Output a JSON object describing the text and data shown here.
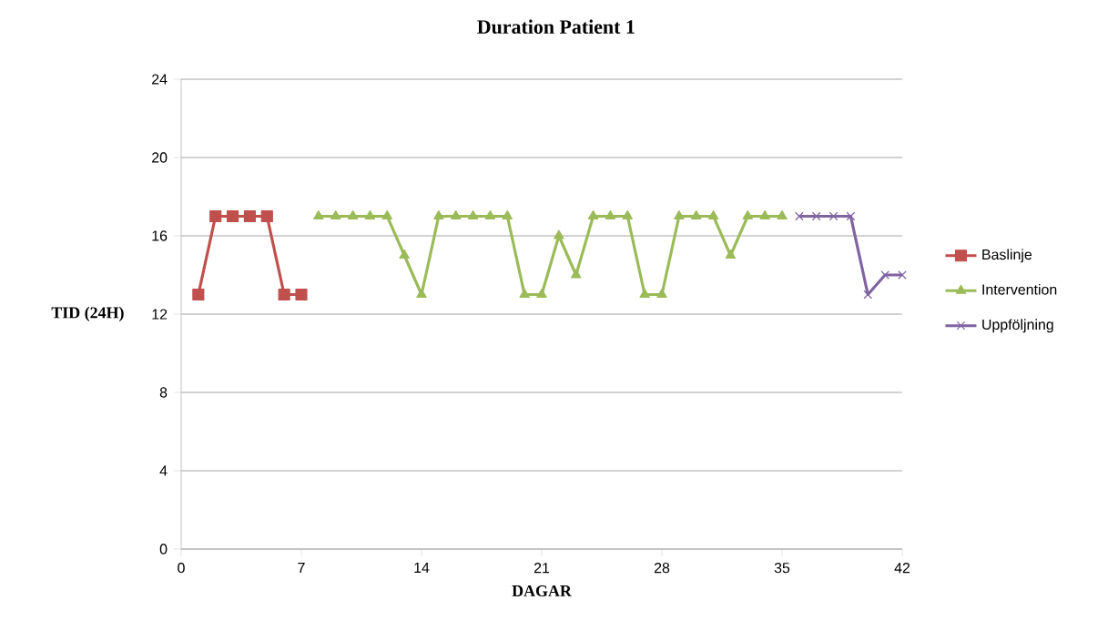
{
  "chart_data": {
    "type": "line",
    "title": "Duration Patient 1",
    "xlabel": "DAGAR",
    "ylabel": "TID (24H)",
    "xlim": [
      0,
      42
    ],
    "xticks": [
      0,
      7,
      14,
      21,
      28,
      35,
      42
    ],
    "ylim": [
      0,
      24
    ],
    "yticks": [
      0,
      4,
      8,
      12,
      16,
      20,
      24
    ],
    "grid": "y",
    "legend": "right",
    "series": [
      {
        "name": "Baslinje",
        "color": "#c0504d",
        "marker": "square",
        "x": [
          1,
          2,
          3,
          4,
          5,
          6,
          7
        ],
        "values": [
          13,
          17,
          17,
          17,
          17,
          13,
          13
        ]
      },
      {
        "name": "Intervention",
        "color": "#9bbb59",
        "marker": "triangle",
        "x": [
          8,
          9,
          10,
          11,
          12,
          13,
          14,
          15,
          16,
          17,
          18,
          19,
          20,
          21,
          22,
          23,
          24,
          25,
          26,
          27,
          28,
          29,
          30,
          31,
          32,
          33,
          34,
          35
        ],
        "values": [
          17,
          17,
          17,
          17,
          17,
          15,
          13,
          17,
          17,
          17,
          17,
          17,
          13,
          13,
          16,
          14,
          17,
          17,
          17,
          13,
          13,
          17,
          17,
          17,
          15,
          17,
          17,
          17
        ]
      },
      {
        "name": "Uppföljning",
        "color": "#8064a2",
        "marker": "cross",
        "x": [
          36,
          37,
          38,
          39,
          40,
          41,
          42
        ],
        "values": [
          17,
          17,
          17,
          17,
          13,
          14,
          14
        ]
      }
    ]
  }
}
